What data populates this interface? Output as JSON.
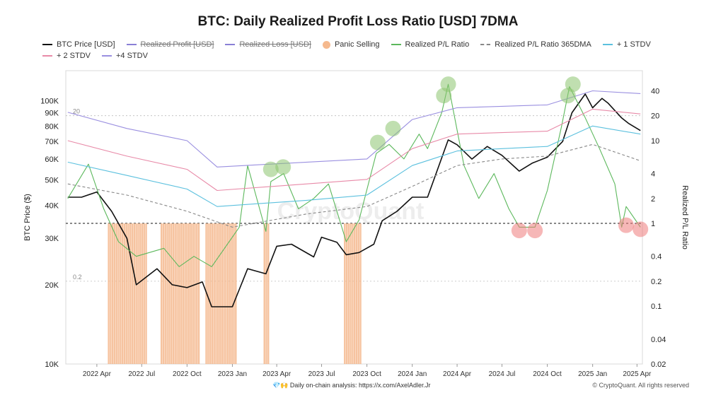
{
  "chart_data": {
    "type": "line",
    "title": "BTC: Daily Realized Profit Loss Ratio [USD] 7DMA",
    "ylabel_left": "BTC Price ($)",
    "ylabel_right": "Realized P/L Ratio",
    "watermark": "CryptoQuant",
    "x_ticks": [
      "2022 Apr",
      "2022 Jul",
      "2022 Oct",
      "2023 Jan",
      "2023 Apr",
      "2023 Jul",
      "2023 Oct",
      "2024 Jan",
      "2024 Apr",
      "2024 Jul",
      "2024 Oct",
      "2025 Jan",
      "2025 Apr"
    ],
    "y_left_ticks": [
      "100K",
      "90K",
      "80K",
      "70K",
      "60K",
      "50K",
      "40K",
      "30K",
      "20K",
      "10K"
    ],
    "y_left_tick_values": [
      100000,
      90000,
      80000,
      70000,
      60000,
      50000,
      40000,
      30000,
      20000,
      10000
    ],
    "y_right_ticks": [
      "40",
      "20",
      "10",
      "4",
      "2",
      "1",
      "0.4",
      "0.2",
      "0.1",
      "0.04",
      "0.02"
    ],
    "y_right_tick_values": [
      40,
      20,
      10,
      4,
      2,
      1,
      0.4,
      0.2,
      0.1,
      0.04,
      0.02
    ],
    "ylim_left": [
      10000,
      130000
    ],
    "ylim_right": [
      0.02,
      70
    ],
    "scale": "log",
    "legend_position": "top",
    "reference_labels": [
      "20",
      "0.2"
    ],
    "reference_values": [
      20,
      1,
      0.2
    ],
    "legend": [
      [
        {
          "label": "BTC Price [USD]",
          "color": "#111111",
          "style": "line",
          "hidden": false
        },
        {
          "label": "Realized Profit [USD]",
          "color": "#8a7fd6",
          "style": "line",
          "hidden": true
        },
        {
          "label": "Realized Loss [USD]",
          "color": "#8a7fd6",
          "style": "line",
          "hidden": true
        },
        {
          "label": "Panic Selling",
          "color": "#f5b98e",
          "style": "dot",
          "hidden": false
        },
        {
          "label": "Realized P/L Ratio",
          "color": "#5cb85c",
          "style": "line",
          "hidden": false
        },
        {
          "label": "Realized P/L Ratio 365DMA",
          "color": "#888888",
          "style": "dashed",
          "hidden": false
        },
        {
          "label": "+ 1 STDV",
          "color": "#5bc0de",
          "style": "line",
          "hidden": false
        }
      ],
      [
        {
          "label": "+ 2 STDV",
          "color": "#e88aa8",
          "style": "line",
          "hidden": false
        },
        {
          "label": "+4 STDV",
          "color": "#9a8fe0",
          "style": "line",
          "hidden": false
        }
      ]
    ],
    "series": [
      {
        "name": "BTC Price [USD]",
        "axis": "left",
        "color": "#111111",
        "x": [
          "2022-02-01",
          "2022-03-01",
          "2022-04-01",
          "2022-05-01",
          "2022-06-01",
          "2022-06-20",
          "2022-08-01",
          "2022-09-01",
          "2022-10-01",
          "2022-11-01",
          "2022-11-20",
          "2023-01-01",
          "2023-02-01",
          "2023-03-10",
          "2023-04-01",
          "2023-05-01",
          "2023-06-15",
          "2023-07-01",
          "2023-08-01",
          "2023-08-20",
          "2023-09-15",
          "2023-10-15",
          "2023-11-01",
          "2023-12-01",
          "2024-01-01",
          "2024-02-01",
          "2024-03-14",
          "2024-04-01",
          "2024-05-01",
          "2024-06-01",
          "2024-07-01",
          "2024-08-05",
          "2024-09-01",
          "2024-10-01",
          "2024-11-01",
          "2024-11-20",
          "2024-12-17",
          "2025-01-01",
          "2025-01-20",
          "2025-02-01",
          "2025-03-01",
          "2025-03-15",
          "2025-04-08"
        ],
        "values": [
          43000,
          43000,
          45000,
          38000,
          30000,
          20000,
          23000,
          20000,
          19500,
          20500,
          16500,
          16500,
          23000,
          22000,
          28000,
          28500,
          25500,
          30300,
          29000,
          26000,
          26500,
          28500,
          35000,
          38000,
          43000,
          43000,
          71000,
          68000,
          60000,
          67000,
          62000,
          54000,
          58000,
          61000,
          70000,
          90000,
          106000,
          94000,
          102000,
          98000,
          86000,
          82000,
          77000
        ]
      },
      {
        "name": "Realized P/L Ratio",
        "axis": "right",
        "color": "#5cb85c",
        "x": [
          "2022-02-01",
          "2022-03-15",
          "2022-04-15",
          "2022-05-15",
          "2022-06-20",
          "2022-08-15",
          "2022-09-15",
          "2022-10-15",
          "2022-11-20",
          "2023-01-15",
          "2023-02-01",
          "2023-03-10",
          "2023-03-20",
          "2023-04-15",
          "2023-05-15",
          "2023-06-15",
          "2023-07-15",
          "2023-08-20",
          "2023-09-15",
          "2023-10-20",
          "2023-11-15",
          "2023-12-15",
          "2024-01-15",
          "2024-02-01",
          "2024-03-01",
          "2024-03-14",
          "2024-04-15",
          "2024-05-15",
          "2024-06-15",
          "2024-07-15",
          "2024-08-05",
          "2024-09-06",
          "2024-10-01",
          "2024-10-30",
          "2024-11-15",
          "2024-12-15",
          "2025-01-15",
          "2025-02-15",
          "2025-03-01",
          "2025-03-10",
          "2025-04-08"
        ],
        "values": [
          2.0,
          5.2,
          1.5,
          0.6,
          0.4,
          0.5,
          0.3,
          0.4,
          0.3,
          0.9,
          5.0,
          0.8,
          3.2,
          4.0,
          1.5,
          2.0,
          3.0,
          0.6,
          1.1,
          7.0,
          9.0,
          6.0,
          12.0,
          8.0,
          22.0,
          48.0,
          5.0,
          2.0,
          4.0,
          1.5,
          0.9,
          0.9,
          2.5,
          15.0,
          45.0,
          20.0,
          8.0,
          3.0,
          0.9,
          1.6,
          0.9
        ]
      },
      {
        "name": "Realized P/L Ratio 365DMA",
        "axis": "right",
        "color": "#888888",
        "x": [
          "2022-02-01",
          "2022-06-01",
          "2022-10-01",
          "2023-01-01",
          "2023-06-01",
          "2023-10-01",
          "2024-01-01",
          "2024-04-01",
          "2024-07-01",
          "2024-10-01",
          "2025-01-01",
          "2025-04-08"
        ],
        "values": [
          3.0,
          2.2,
          1.4,
          0.9,
          1.3,
          1.6,
          2.8,
          5.0,
          6.0,
          6.5,
          9.0,
          5.7
        ]
      },
      {
        "name": "+ 1 STDV",
        "axis": "right",
        "color": "#5bc0de",
        "x": [
          "2022-02-01",
          "2022-06-01",
          "2022-10-01",
          "2022-12-01",
          "2023-06-01",
          "2023-10-01",
          "2024-01-01",
          "2024-04-01",
          "2024-07-01",
          "2024-10-01",
          "2025-01-01",
          "2025-04-08"
        ],
        "values": [
          5.5,
          3.8,
          2.6,
          1.6,
          1.9,
          2.2,
          5.0,
          7.5,
          8.0,
          8.5,
          15.0,
          12.0
        ]
      },
      {
        "name": "+ 2 STDV",
        "axis": "right",
        "color": "#e88aa8",
        "x": [
          "2022-02-01",
          "2022-06-01",
          "2022-10-01",
          "2022-12-01",
          "2023-06-01",
          "2023-10-01",
          "2024-01-01",
          "2024-04-01",
          "2024-07-01",
          "2024-10-01",
          "2025-01-01",
          "2025-04-08"
        ],
        "values": [
          10.0,
          6.5,
          4.5,
          2.5,
          3.0,
          3.4,
          8.0,
          12.0,
          12.5,
          13.0,
          24.0,
          21.0
        ]
      },
      {
        "name": "+4 STDV",
        "axis": "right",
        "color": "#9a8fe0",
        "x": [
          "2022-02-01",
          "2022-06-01",
          "2022-10-01",
          "2022-12-01",
          "2023-06-01",
          "2023-10-01",
          "2024-01-01",
          "2024-04-01",
          "2024-07-01",
          "2024-10-01",
          "2025-01-01",
          "2025-04-08"
        ],
        "values": [
          22.0,
          14.0,
          10.0,
          4.8,
          5.5,
          6.0,
          18.0,
          25.0,
          26.0,
          27.0,
          40.0,
          37.0
        ]
      }
    ],
    "panic_selling": {
      "label": "Panic Selling",
      "color": "#f5b98e",
      "ranges": [
        [
          "2022-04-25",
          "2022-07-10"
        ],
        [
          "2022-08-10",
          "2022-10-25"
        ],
        [
          "2022-11-09",
          "2023-01-10"
        ],
        [
          "2023-03-07",
          "2023-03-15"
        ],
        [
          "2023-08-17",
          "2023-09-20"
        ]
      ]
    },
    "highlight_markers": [
      {
        "x": "2023-03-20",
        "y": 4.5,
        "color": "green"
      },
      {
        "x": "2023-04-14",
        "y": 4.8,
        "color": "green"
      },
      {
        "x": "2023-10-23",
        "y": 9.5,
        "color": "green"
      },
      {
        "x": "2023-11-23",
        "y": 14.0,
        "color": "green"
      },
      {
        "x": "2024-03-05",
        "y": 35.0,
        "color": "green"
      },
      {
        "x": "2024-03-14",
        "y": 48.0,
        "color": "green"
      },
      {
        "x": "2024-11-12",
        "y": 35.0,
        "color": "green"
      },
      {
        "x": "2024-11-22",
        "y": 48.0,
        "color": "green"
      },
      {
        "x": "2024-08-05",
        "y": 0.82,
        "color": "red"
      },
      {
        "x": "2024-09-06",
        "y": 0.82,
        "color": "red"
      },
      {
        "x": "2025-03-10",
        "y": 0.95,
        "color": "red"
      },
      {
        "x": "2025-04-08",
        "y": 0.85,
        "color": "red"
      }
    ]
  },
  "footer": {
    "attribution": "💎🙌 Daily on-chain analysis: https://x.com/AxelAdler.Jr",
    "copyright": "© CryptoQuant. All rights reserved"
  }
}
